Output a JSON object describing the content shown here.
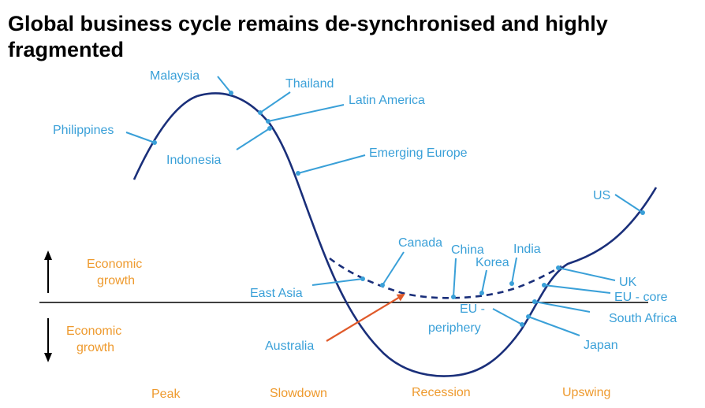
{
  "title": "Global business cycle remains de-synchronised and highly fragmented",
  "axis": {
    "upper_label": [
      "Economic",
      "growth"
    ],
    "lower_label": [
      "Economic",
      "growth"
    ]
  },
  "phases": [
    "Peak",
    "Slowdown",
    "Recession",
    "Upswing"
  ],
  "labels": {
    "malaysia": "Malaysia",
    "thailand": "Thailand",
    "latin_america": "Latin America",
    "philippines": "Philippines",
    "indonesia": "Indonesia",
    "emerging_europe": "Emerging Europe",
    "us": "US",
    "canada": "Canada",
    "china": "China",
    "india": "India",
    "korea": "Korea",
    "east_asia": "East Asia",
    "uk": "UK",
    "eu_core": "EU - core",
    "eu_periphery": [
      "EU -",
      "periphery"
    ],
    "south_africa": "South Africa",
    "japan": "Japan",
    "australia": "Australia"
  },
  "colors": {
    "curve": "#1a2f7a",
    "label": "#3aa0d8",
    "axis_label": "#ee9a2e",
    "australia_arrow": "#e05a2a",
    "baseline": "#000000"
  }
}
